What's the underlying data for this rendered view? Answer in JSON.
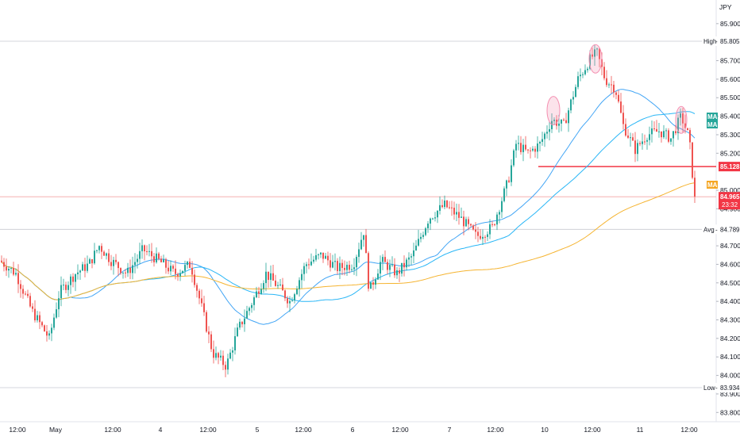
{
  "chart_data": {
    "type": "candlestick",
    "currency": "JPY",
    "y_ticks": [
      "85.900",
      "85.700",
      "85.600",
      "85.500",
      "85.400",
      "85.300",
      "85.200",
      "85.000",
      "84.900",
      "84.700",
      "84.600",
      "84.500",
      "84.400",
      "84.300",
      "84.200",
      "84.100",
      "84.000",
      "83.900",
      "83.800"
    ],
    "x_ticks": [
      "12:00",
      "May",
      "12:00",
      "4",
      "12:00",
      "5",
      "12:00",
      "6",
      "12:00",
      "7",
      "12:00",
      "10",
      "12:00",
      "11",
      "12:00"
    ],
    "ylim": [
      83.73,
      86.03
    ],
    "high": {
      "label": "High",
      "value": "85.805"
    },
    "low": {
      "label": "Low",
      "value": "83.934"
    },
    "avg": {
      "label": "Avg",
      "value": "84.789"
    },
    "resistance_level": {
      "value": "85.128",
      "color": "#f23645"
    },
    "last_price": {
      "value": "84.965",
      "countdown": "23:32",
      "color": "#f23645"
    },
    "ma_badges": [
      {
        "text": "MA",
        "color": "#26a69a"
      },
      {
        "text": "MA",
        "color": "#26a69a"
      },
      {
        "text": "MA",
        "color": "#f5a623"
      }
    ],
    "colors": {
      "up": "#26a69a",
      "down": "#ef5350",
      "ma_fast": "#42a5f5",
      "ma_mid": "#29b6f6",
      "ma_slow": "#f5b431",
      "circle": "#f48fb1"
    }
  }
}
